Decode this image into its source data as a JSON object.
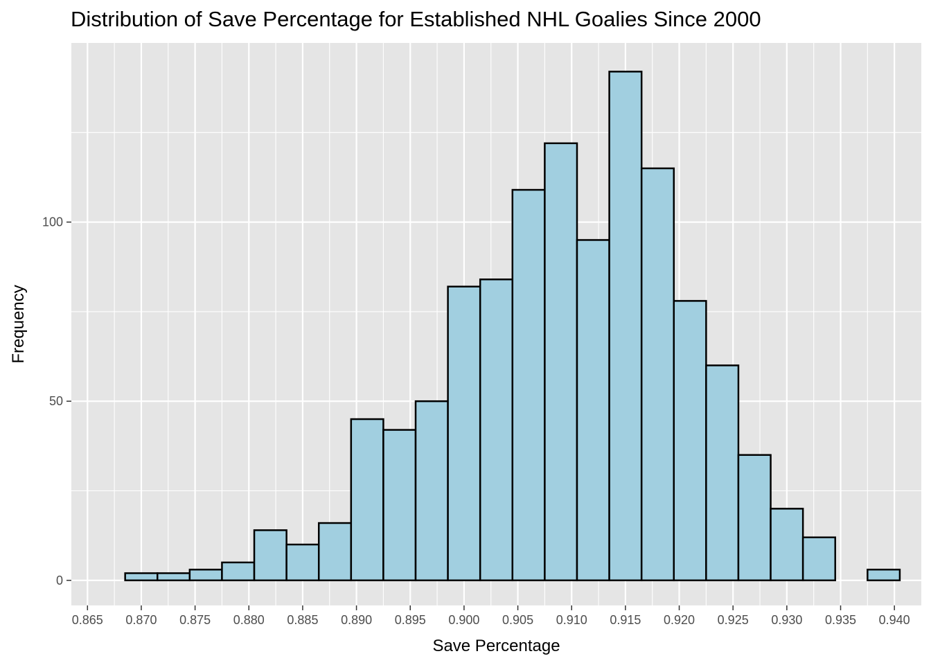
{
  "chart_data": {
    "type": "bar",
    "title": "Distribution of Save Percentage for Established NHL Goalies Since 2000",
    "xlabel": "Save Percentage",
    "ylabel": "Frequency",
    "bin_width": 0.003,
    "bins": [
      {
        "x": 0.87,
        "count": 2
      },
      {
        "x": 0.873,
        "count": 2
      },
      {
        "x": 0.876,
        "count": 3
      },
      {
        "x": 0.879,
        "count": 5
      },
      {
        "x": 0.882,
        "count": 14
      },
      {
        "x": 0.885,
        "count": 10
      },
      {
        "x": 0.888,
        "count": 16
      },
      {
        "x": 0.891,
        "count": 45
      },
      {
        "x": 0.894,
        "count": 42
      },
      {
        "x": 0.897,
        "count": 50
      },
      {
        "x": 0.9,
        "count": 82
      },
      {
        "x": 0.903,
        "count": 84
      },
      {
        "x": 0.906,
        "count": 109
      },
      {
        "x": 0.909,
        "count": 122
      },
      {
        "x": 0.912,
        "count": 95
      },
      {
        "x": 0.915,
        "count": 142
      },
      {
        "x": 0.918,
        "count": 115
      },
      {
        "x": 0.921,
        "count": 78
      },
      {
        "x": 0.924,
        "count": 60
      },
      {
        "x": 0.927,
        "count": 35
      },
      {
        "x": 0.93,
        "count": 20
      },
      {
        "x": 0.933,
        "count": 12
      },
      {
        "x": 0.936,
        "count": 0
      },
      {
        "x": 0.939,
        "count": 3
      }
    ],
    "xlim": [
      0.8635,
      0.9425
    ],
    "ylim": [
      -7,
      150
    ],
    "x_ticks": [
      "0.865",
      "0.870",
      "0.875",
      "0.880",
      "0.885",
      "0.890",
      "0.895",
      "0.900",
      "0.905",
      "0.910",
      "0.915",
      "0.920",
      "0.925",
      "0.930",
      "0.935",
      "0.940"
    ],
    "y_ticks": [
      "0",
      "50",
      "100"
    ],
    "colors": {
      "panel_background": "#e5e5e5",
      "grid": "#ffffff",
      "bar_fill": "#a1cfe0",
      "bar_outline": "#000000"
    },
    "grid": true
  }
}
